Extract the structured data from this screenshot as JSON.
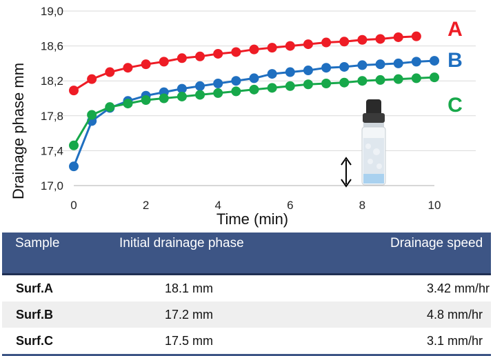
{
  "chart_data": {
    "type": "line",
    "xlabel": "Time (min)",
    "ylabel": "Drainage phase mm",
    "xlim": [
      0,
      10
    ],
    "ylim": [
      17.0,
      19.0
    ],
    "xticks": [
      0,
      2,
      4,
      6,
      8,
      10
    ],
    "yticks": [
      17.0,
      17.4,
      17.8,
      18.2,
      18.6,
      19.0
    ],
    "ytick_labels": [
      "17,0",
      "17,4",
      "17,8",
      "18,2",
      "18,6",
      "19,0"
    ],
    "grid": "horizontal",
    "series": [
      {
        "name": "A",
        "color": "#ee1c25",
        "x": [
          0,
          0.5,
          1,
          1.5,
          2,
          2.5,
          3,
          3.5,
          4,
          4.5,
          5,
          5.5,
          6,
          6.5,
          7,
          7.5,
          8,
          8.5,
          9,
          9.5
        ],
        "y": [
          18.09,
          18.22,
          18.3,
          18.35,
          18.39,
          18.42,
          18.46,
          18.48,
          18.51,
          18.53,
          18.56,
          18.58,
          18.6,
          18.62,
          18.64,
          18.65,
          18.67,
          18.68,
          18.7,
          18.71
        ]
      },
      {
        "name": "B",
        "color": "#1f6fc0",
        "x": [
          0,
          0.5,
          1,
          1.5,
          2,
          2.5,
          3,
          3.5,
          4,
          4.5,
          5,
          5.5,
          6,
          6.5,
          7,
          7.5,
          8,
          8.5,
          9,
          9.5,
          10
        ],
        "y": [
          17.22,
          17.74,
          17.89,
          17.97,
          18.03,
          18.07,
          18.11,
          18.14,
          18.17,
          18.2,
          18.23,
          18.28,
          18.3,
          18.32,
          18.35,
          18.36,
          18.38,
          18.39,
          18.4,
          18.42,
          18.43
        ]
      },
      {
        "name": "C",
        "color": "#17a84a",
        "x": [
          0,
          0.5,
          1,
          1.5,
          2,
          2.5,
          3,
          3.5,
          4,
          4.5,
          5,
          5.5,
          6,
          6.5,
          7,
          7.5,
          8,
          8.5,
          9,
          9.5,
          10
        ],
        "y": [
          17.46,
          17.81,
          17.9,
          17.94,
          17.98,
          18.0,
          18.02,
          18.04,
          18.06,
          18.08,
          18.1,
          18.12,
          18.14,
          18.16,
          18.17,
          18.18,
          18.2,
          18.21,
          18.22,
          18.23,
          18.24
        ]
      }
    ]
  },
  "table": {
    "headers": [
      "Sample",
      "Initial drainage phase",
      "Drainage speed"
    ],
    "rows": [
      [
        "Surf.A",
        "18.1 mm",
        "3.42 mm/hr"
      ],
      [
        "Surf.B",
        "17.2 mm",
        "4.8 mm/hr"
      ],
      [
        "Surf.C",
        "17.5 mm",
        "3.1 mm/hr"
      ]
    ]
  },
  "icons": [
    "vial-icon",
    "double-arrow-icon"
  ]
}
